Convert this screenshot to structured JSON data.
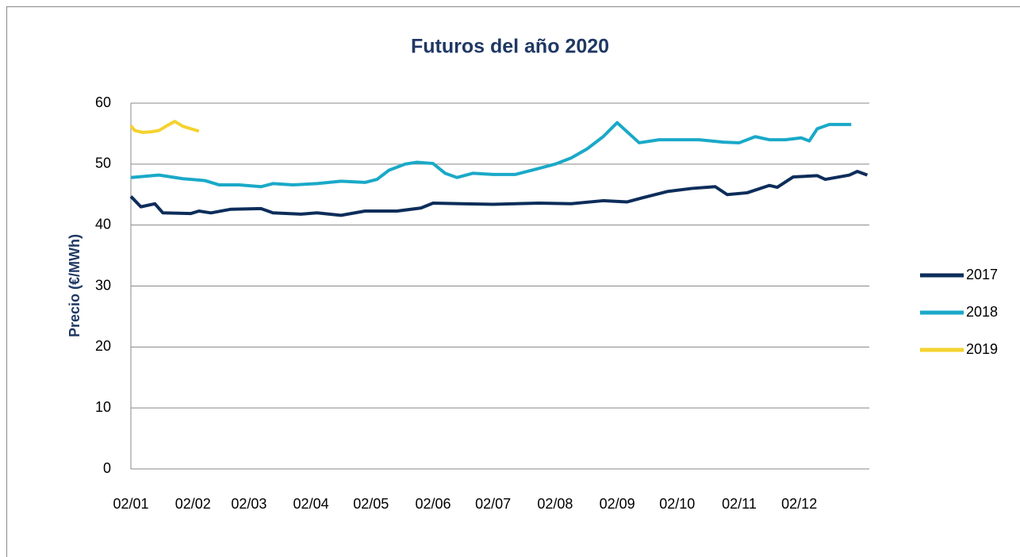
{
  "chart_data": {
    "type": "line",
    "title": "Futuros del año 2020",
    "ylabel": "Precio (€/MWh)",
    "ylim": [
      0,
      60
    ],
    "yticks": [
      0,
      10,
      20,
      30,
      40,
      50,
      60
    ],
    "xlim": [
      0,
      369
    ],
    "xticks": [
      {
        "value": 0,
        "label": "02/01"
      },
      {
        "value": 31,
        "label": "02/02"
      },
      {
        "value": 59,
        "label": "02/03"
      },
      {
        "value": 90,
        "label": "02/04"
      },
      {
        "value": 120,
        "label": "02/05"
      },
      {
        "value": 151,
        "label": "02/06"
      },
      {
        "value": 181,
        "label": "02/07"
      },
      {
        "value": 212,
        "label": "02/08"
      },
      {
        "value": 243,
        "label": "02/09"
      },
      {
        "value": 273,
        "label": "02/10"
      },
      {
        "value": 304,
        "label": "02/11"
      },
      {
        "value": 334,
        "label": "02/12"
      }
    ],
    "grid": true,
    "legend": "right",
    "series": [
      {
        "name": "2017",
        "color": "#0d2d5a",
        "x": [
          0,
          5,
          12,
          16,
          30,
          34,
          40,
          50,
          65,
          71,
          85,
          93,
          105,
          117,
          133,
          145,
          151,
          165,
          181,
          192,
          204,
          220,
          236,
          248,
          256,
          268,
          280,
          292,
          298,
          308,
          319,
          323,
          331,
          343,
          347,
          359,
          363,
          368
        ],
        "values": [
          44.7,
          43,
          43.5,
          42,
          41.9,
          42.3,
          42,
          42.6,
          42.7,
          42,
          41.8,
          42,
          41.6,
          42.3,
          42.3,
          42.8,
          43.6,
          43.5,
          43.4,
          43.5,
          43.6,
          43.5,
          44,
          43.8,
          44.5,
          45.5,
          46,
          46.3,
          45,
          45.3,
          46.5,
          46.2,
          47.9,
          48.1,
          47.5,
          48.2,
          48.8,
          48.2
        ]
      },
      {
        "name": "2018",
        "color": "#1aa9c8",
        "x": [
          0,
          14,
          26,
          37,
          44,
          54,
          65,
          71,
          81,
          93,
          105,
          117,
          123,
          129,
          137,
          143,
          151,
          157,
          163,
          171,
          181,
          192,
          204,
          212,
          220,
          228,
          236,
          243,
          249,
          254,
          264,
          272,
          284,
          296,
          304,
          312,
          319,
          327,
          335,
          339,
          343,
          349,
          360
        ],
        "values": [
          47.8,
          48.2,
          47.6,
          47.3,
          46.6,
          46.6,
          46.3,
          46.8,
          46.6,
          46.8,
          47.2,
          47,
          47.5,
          49,
          50,
          50.3,
          50.1,
          48.5,
          47.8,
          48.5,
          48.3,
          48.3,
          49.3,
          50,
          51,
          52.5,
          54.5,
          56.8,
          55,
          53.5,
          54,
          54,
          54,
          53.6,
          53.5,
          54.5,
          54,
          54,
          54.3,
          53.8,
          55.8,
          56.5,
          56.5
        ]
      },
      {
        "name": "2019",
        "color": "#f5d22e",
        "x": [
          0,
          2,
          6,
          10,
          14,
          18,
          22,
          26,
          30,
          34
        ],
        "values": [
          56.3,
          55.5,
          55.2,
          55.3,
          55.5,
          56.3,
          57,
          56.2,
          55.8,
          55.4
        ]
      }
    ]
  }
}
